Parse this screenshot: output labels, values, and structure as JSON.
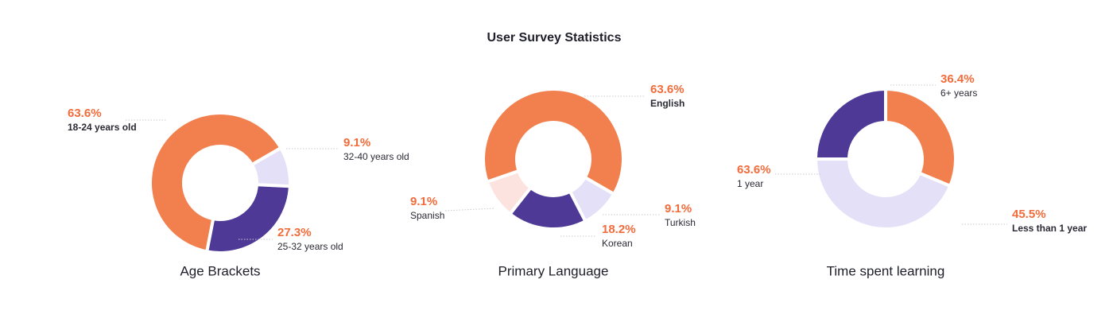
{
  "title": "User Survey Statistics",
  "chart_data": [
    {
      "type": "pie",
      "donut": true,
      "title": "Age Brackets",
      "categories": [
        "32-40 years old",
        "25-32 years old",
        "18-24 years old"
      ],
      "values": [
        9.1,
        27.3,
        63.6
      ],
      "value_labels": [
        "9.1%",
        "27.3%",
        "63.6%"
      ],
      "colors": [
        "#e4e0f8",
        "#4e3a96",
        "#f2804f"
      ]
    },
    {
      "type": "pie",
      "donut": true,
      "title": "Primary Language",
      "categories": [
        "Turkish",
        "Korean",
        "Spanish",
        "English"
      ],
      "values": [
        9.1,
        18.2,
        9.1,
        63.6
      ],
      "value_labels": [
        "9.1%",
        "18.2%",
        "9.1%",
        "63.6%"
      ],
      "colors": [
        "#e4e0f8",
        "#4e3a96",
        "#fde3df",
        "#f2804f"
      ]
    },
    {
      "type": "pie",
      "donut": true,
      "title": "Time spent learning",
      "categories": [
        "6+ years",
        "Less than 1 year",
        "1 year"
      ],
      "values": [
        36.4,
        45.5,
        63.6
      ],
      "value_labels": [
        "36.4%",
        "45.5%",
        "63.6%"
      ],
      "colors": [
        "#4e3a96",
        "#f2804f",
        "#e4e0f8"
      ]
    }
  ]
}
